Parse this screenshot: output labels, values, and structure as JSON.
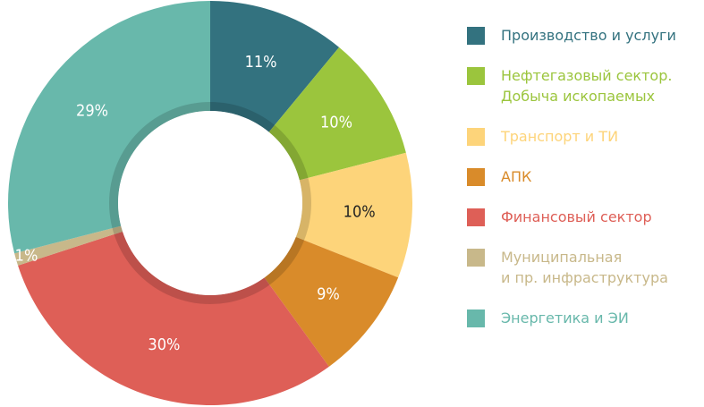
{
  "chart_data": {
    "type": "donut",
    "categories": [
      "Производство и услуги",
      "Нефтегазовый сектор.\nДобыча ископаемых",
      "Транспорт и ТИ",
      "АПК",
      "Финансовый сектор",
      "Муниципальная\nи пр. инфраструктура",
      "Энергетика и ЭИ"
    ],
    "values": [
      11,
      10,
      10,
      9,
      30,
      1,
      29
    ],
    "value_labels": [
      "11%",
      "10%",
      "10%",
      "9%",
      "30%",
      "1%",
      "29%"
    ],
    "colors": [
      "#33727f",
      "#9bc53d",
      "#fdd47a",
      "#d98b2a",
      "#de5f57",
      "#c8b88a",
      "#68b8ab"
    ]
  }
}
